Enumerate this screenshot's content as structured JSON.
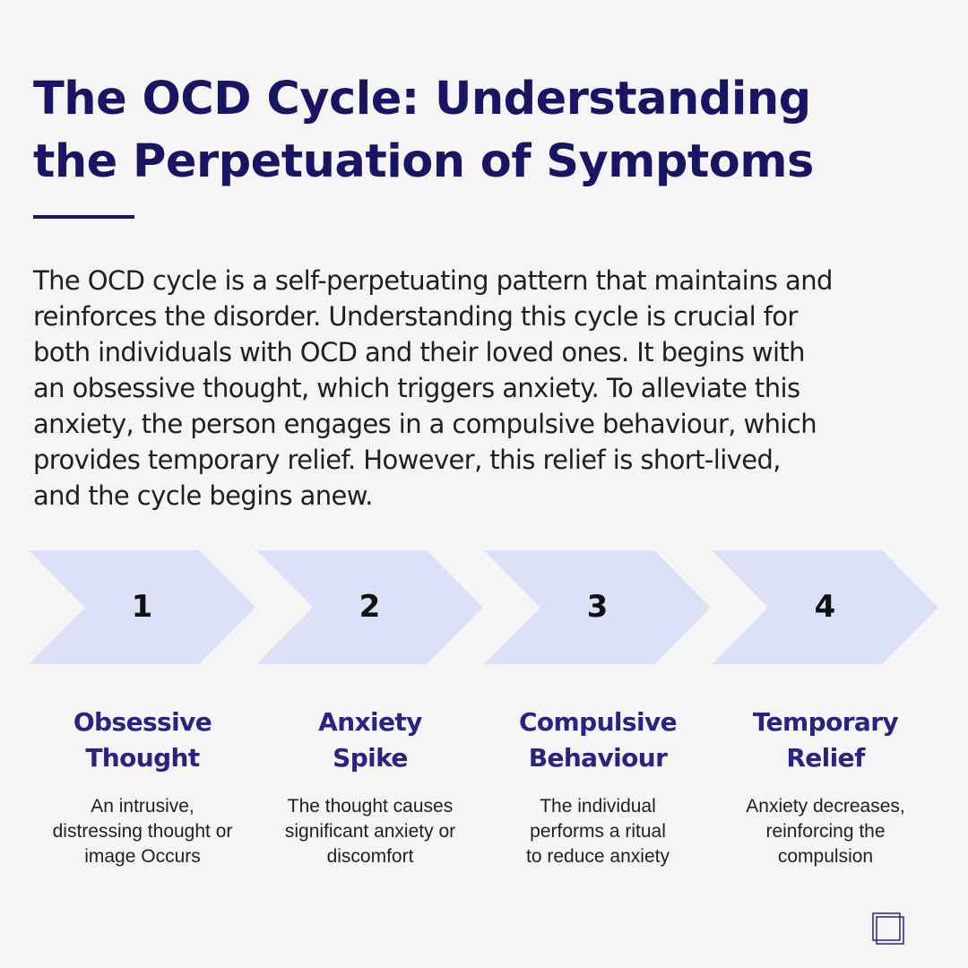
{
  "title": {
    "line1": "The OCD Cycle: Understanding",
    "line2": "the Perpetuation of Symptoms"
  },
  "intro": {
    "line1": "The OCD cycle is a self-perpetuating pattern that maintains and",
    "line2": "reinforces the disorder. Understanding this cycle is crucial for",
    "line3": "both individuals with OCD and their loved ones. It begins with",
    "line4": "an obsessive thought, which triggers anxiety. To alleviate this",
    "line5": "anxiety, the person engages in a compulsive behaviour, which",
    "line6": "provides temporary relief. However, this relief is short-lived,",
    "line7": "and the cycle begins anew."
  },
  "steps": [
    {
      "number": "1",
      "heading_line1": "Obsessive",
      "heading_line2": "Thought",
      "desc_line1": "An intrusive,",
      "desc_line2": "distressing thought or",
      "desc_line3": "image Occurs"
    },
    {
      "number": "2",
      "heading_line1": "Anxiety",
      "heading_line2": "Spike",
      "desc_line1": "The thought causes",
      "desc_line2": "significant anxiety or",
      "desc_line3": "discomfort"
    },
    {
      "number": "3",
      "heading_line1": "Compulsive",
      "heading_line2": "Behaviour",
      "desc_line1": "The individual",
      "desc_line2": "performs a ritual",
      "desc_line3": "to reduce anxiety"
    },
    {
      "number": "4",
      "heading_line1": "Temporary",
      "heading_line2": "Relief",
      "desc_line1": "Anxiety decreases,",
      "desc_line2": "reinforcing the",
      "desc_line3": "compulsion"
    }
  ],
  "colors": {
    "background": "#f6f4f5",
    "title": "#1a1464",
    "heading": "#2a237f",
    "chevron": "#dde1f8",
    "body_text": "#1f1f1f"
  },
  "icons": {
    "corner_mark": "overlapping-squares-icon"
  }
}
